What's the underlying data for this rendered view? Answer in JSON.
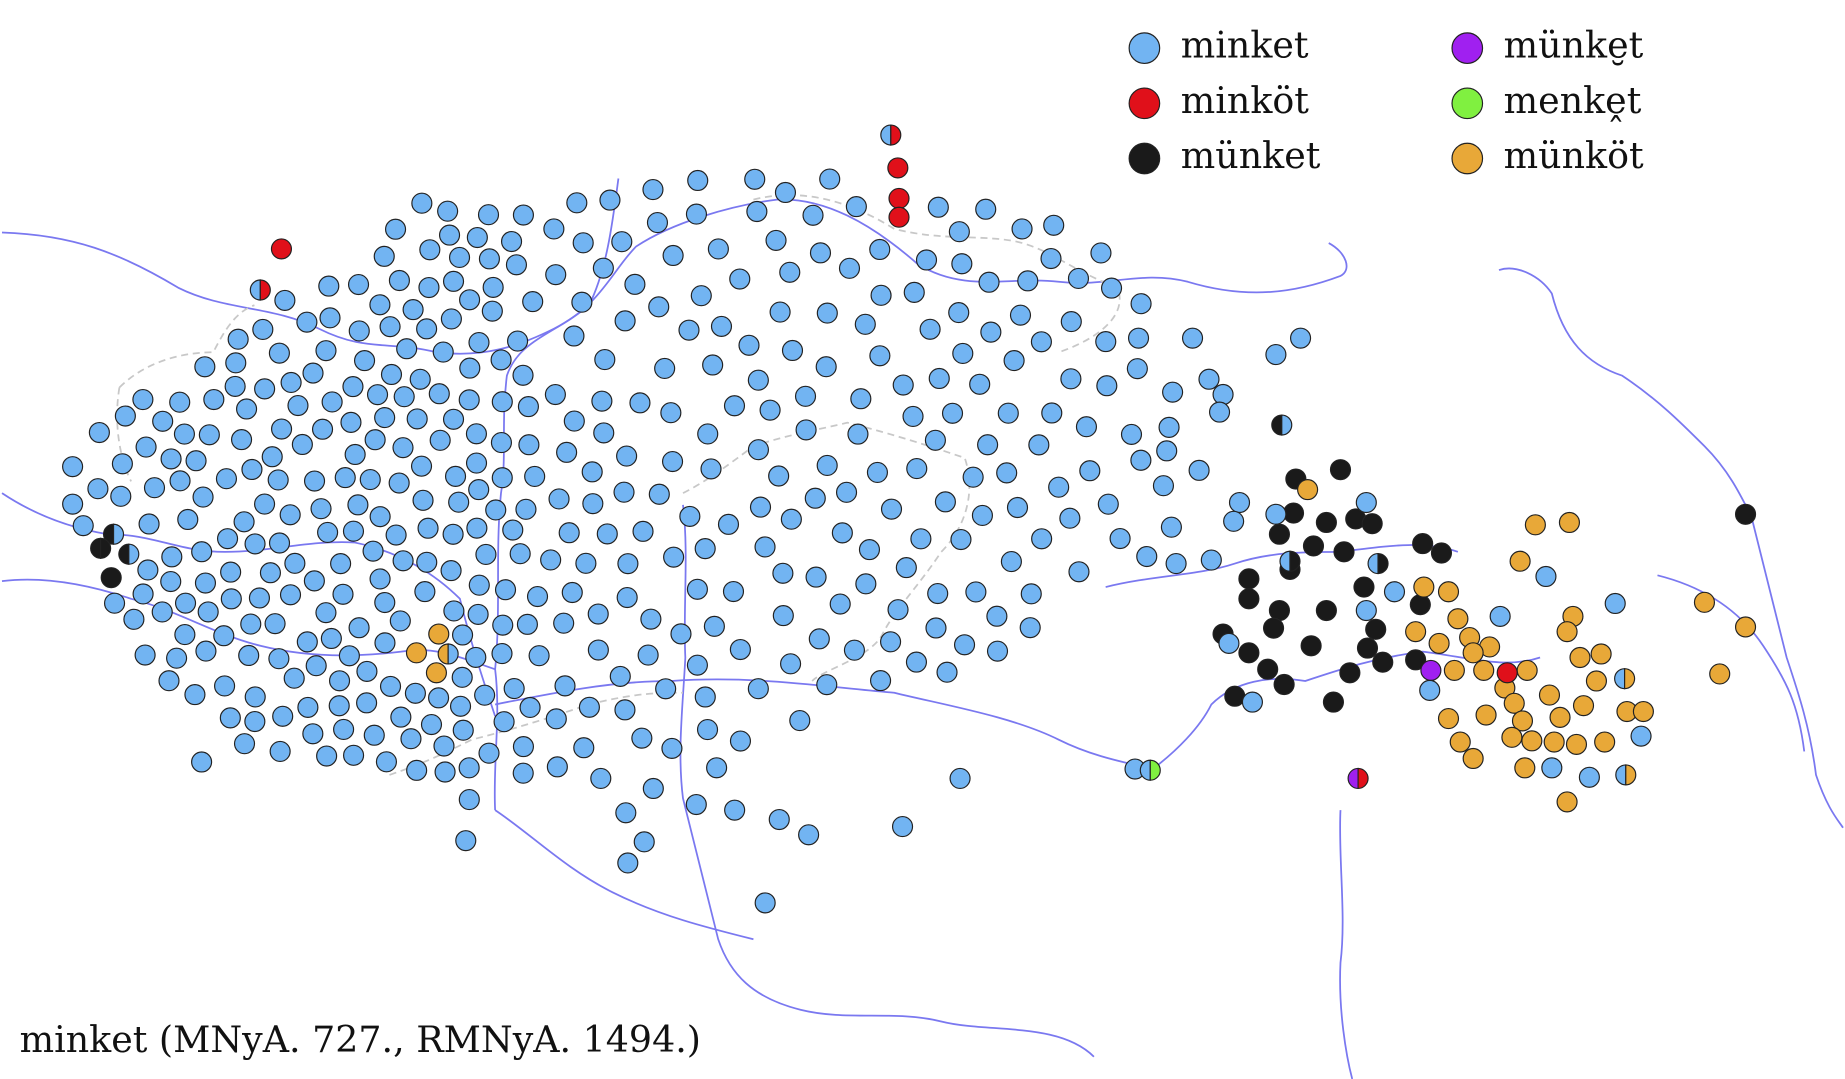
{
  "legend": [
    {
      "label": "minket",
      "color": "#72b4f2"
    },
    {
      "label": "minköt",
      "color": "#e0101a"
    },
    {
      "label": "münket",
      "color": "#1a1a1a"
    },
    {
      "label": "münke̮t",
      "color": "#a020f0"
    },
    {
      "label": "menkḙt",
      "color": "#80f040"
    },
    {
      "label": "münköt",
      "color": "#e8a838"
    }
  ],
  "caption": "minket (MNyA. 727., RMNyA. 1494.)"
}
